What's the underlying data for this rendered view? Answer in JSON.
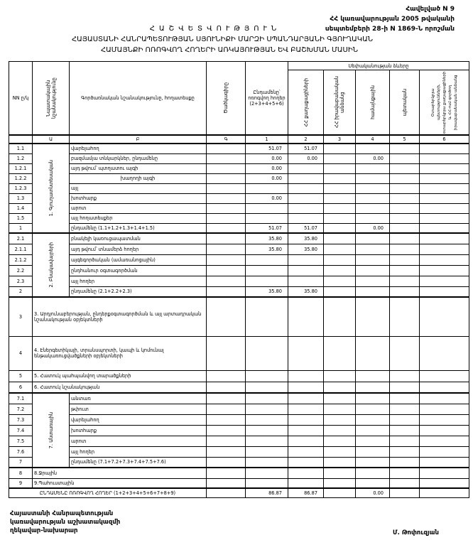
{
  "appendix": {
    "line1": "Հավելված N 9",
    "line2": "ՀՀ կառավարության 2005 թվականի",
    "line3": "սեպտեմբերի 28-ի N 1869-Ն որոշման"
  },
  "title": {
    "main": "ՀԱՇՎԵՏՎՈՒԹՅՈՒՆ",
    "line2": "ՀԱՅԱՍՏԱՆԻ ՀԱՆՐԱՊԵՏՈՒԹՅԱՆ ՍՅՈՒՆԻՔԻ ՄԱՐԶԻ ՍՊԱՆԴԱՐՅԱՆԻ ԳՅՈՒՂԱԿԱՆ",
    "line3": "ՀԱՄԱՅՆՔԻ ՈՌՈԳՎՈՂ ՀՈՂԵՐԻ ԱՌԿԱՅՈՒԹՅԱՆ ԵՎ ԲԱՇԽՄԱՆ ՄԱՍԻՆ"
  },
  "table": {
    "headers": {
      "nn": "NN ը/կ",
      "purpose": "Նպատակային նշանակությունը",
      "function": "Գործառնական նշանակությունը, հողատեսքը",
      "code": "Ծածկագիրը",
      "total": "Ընդամենը՝ ոռոգվող հողեր (2+3+4+5+6)",
      "ownership": "Սեփականության ձևերը",
      "col2": "ՀՀ քաղաքացիների",
      "col3": "ՀՀ իրավաբանական անձանց",
      "col4": "համայնքային",
      "col5": "պետական",
      "col6": "Օտարերկրյա պետությունների, օտարերկրյա քաղաքացիների և ՀՀ-ում գործող իրավաբանական անձանց"
    },
    "letters": [
      "Ա",
      "Բ",
      "Գ",
      "1",
      "2",
      "3",
      "4",
      "5",
      "6"
    ],
    "categories": {
      "cat1": "1. Գյուղատնտեսական",
      "cat2": "2. Բնակավայրերի",
      "cat7": "7. Անտառային"
    },
    "rows": [
      {
        "nn": "1.1",
        "label": "վարելահող",
        "v": [
          "",
          "51.07",
          "51.07",
          "",
          "",
          "",
          ""
        ]
      },
      {
        "nn": "1.2",
        "label": "բազմամյա տնկարկներ, ընդամենը",
        "v": [
          "",
          "0.00",
          "0.00",
          "",
          "0.00",
          "",
          ""
        ]
      },
      {
        "nn": "1.2.1",
        "label": "այդ թվում՝          պտղատու այգի",
        "v": [
          "",
          "0.00",
          "",
          "",
          "",
          "",
          ""
        ]
      },
      {
        "nn": "1.2.2",
        "label": "խաղողի այգի",
        "v": [
          "",
          "0.00",
          "",
          "",
          "",
          "",
          ""
        ]
      },
      {
        "nn": "1.2.3",
        "label": "այլ",
        "v": [
          "",
          "",
          "",
          "",
          "",
          "",
          ""
        ]
      },
      {
        "nn": "1.3",
        "label": "խոտհարք",
        "v": [
          "",
          "0.00",
          "",
          "",
          "",
          "",
          ""
        ]
      },
      {
        "nn": "1.4",
        "label": "արոտ",
        "v": [
          "",
          "",
          "",
          "",
          "",
          "",
          ""
        ]
      },
      {
        "nn": "1.5",
        "label": "այլ հողատեսքեր",
        "v": [
          "",
          "",
          "",
          "",
          "",
          "",
          ""
        ]
      },
      {
        "nn": "1",
        "label": "ընդամենը (1.1+1.2+1.3+1.4+1.5)",
        "v": [
          "",
          "51.07",
          "51.07",
          "",
          "0.00",
          "",
          ""
        ]
      },
      {
        "nn": "2.1",
        "label": "բնակելի կառուցապատման",
        "v": [
          "",
          "35.80",
          "35.80",
          "",
          "",
          "",
          ""
        ]
      },
      {
        "nn": "2.1.1",
        "label": "այդ թվում՝ տնամերձ հողեր",
        "v": [
          "",
          "35.80",
          "35.80",
          "",
          "",
          "",
          ""
        ]
      },
      {
        "nn": "2.1.2",
        "label": "այգեգործական (ամառանոցային)",
        "v": [
          "",
          "",
          "",
          "",
          "",
          "",
          ""
        ]
      },
      {
        "nn": "2.2",
        "label": "ընդհանուր օգտագործման",
        "v": [
          "",
          "",
          "",
          "",
          "",
          "",
          ""
        ]
      },
      {
        "nn": "2.3",
        "label": "այլ հողեր",
        "v": [
          "",
          "",
          "",
          "",
          "",
          "",
          ""
        ]
      },
      {
        "nn": "2",
        "label": "ընդամենը (2.1+2.2+2.3)",
        "v": [
          "",
          "35.80",
          "35.80",
          "",
          "",
          "",
          ""
        ]
      },
      {
        "nn": "3",
        "label": "3. Արդյունաբերության, ընդերքօգտագործման և այլ արտադրական նշանակության օբյեկտների",
        "v": [
          "",
          "",
          "",
          "",
          "",
          "",
          ""
        ]
      },
      {
        "nn": "4",
        "label": "4. Էներգետիկայի, տրանսպորտի, կապի և կոմունալ ենթակառուցվածքների օբյեկտների",
        "v": [
          "",
          "",
          "",
          "",
          "",
          "",
          ""
        ]
      },
      {
        "nn": "5",
        "label": "5. Հատուկ պահպանվող տարածքների",
        "v": [
          "",
          "",
          "",
          "",
          "",
          "",
          ""
        ]
      },
      {
        "nn": "6",
        "label": "6. Հատուկ նշանակության",
        "v": [
          "",
          "",
          "",
          "",
          "",
          "",
          ""
        ]
      },
      {
        "nn": "7.1",
        "label": "անտառ",
        "v": [
          "",
          "",
          "",
          "",
          "",
          "",
          ""
        ]
      },
      {
        "nn": "7.2",
        "label": "թփուտ",
        "v": [
          "",
          "",
          "",
          "",
          "",
          "",
          ""
        ]
      },
      {
        "nn": "7.3",
        "label": "վարելահող",
        "v": [
          "",
          "",
          "",
          "",
          "",
          "",
          ""
        ]
      },
      {
        "nn": "7.4",
        "label": "խոտհարք",
        "v": [
          "",
          "",
          "",
          "",
          "",
          "",
          ""
        ]
      },
      {
        "nn": "7.5",
        "label": "արոտ",
        "v": [
          "",
          "",
          "",
          "",
          "",
          "",
          ""
        ]
      },
      {
        "nn": "7.6",
        "label": "այլ հողեր",
        "v": [
          "",
          "",
          "",
          "",
          "",
          "",
          ""
        ]
      },
      {
        "nn": "7",
        "label": "ընդամենը (7.1+7.2+7.3+7.4+7.5+7.6)",
        "v": [
          "",
          "",
          "",
          "",
          "",
          "",
          ""
        ]
      },
      {
        "nn": "8",
        "label": "8.Ջրային",
        "v": [
          "",
          "",
          "",
          "",
          "",
          "",
          ""
        ]
      },
      {
        "nn": "9",
        "label": "9.Պահուստային",
        "v": [
          "",
          "",
          "",
          "",
          "",
          "",
          ""
        ]
      }
    ],
    "total": {
      "label": "ԸՆԴԱՄԵՆԸ ՈՌՈԳՎՈՂ ՀՈՂԵՐ (1+2+3+4+5+6+7+8+9)",
      "v": [
        "",
        "86.87",
        "86.87",
        "",
        "0.00",
        "",
        ""
      ]
    }
  },
  "signature": {
    "line1": "Հայաստանի Հանրապետության",
    "line2": "կառավարության աշխատակազմի",
    "line3": "ղեկավար-նախարար",
    "name": "Մ. Թոփուզյան"
  }
}
